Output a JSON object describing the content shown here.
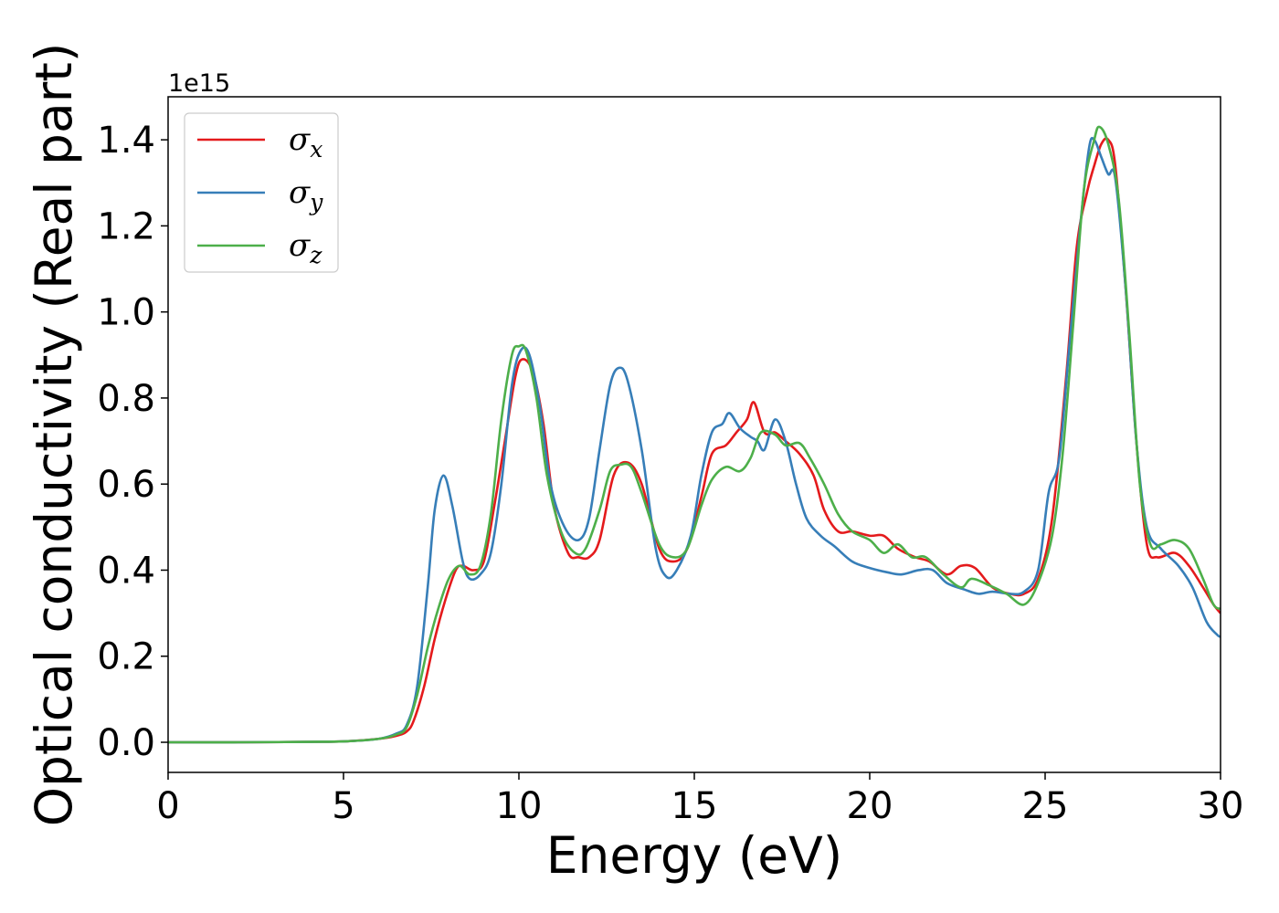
{
  "chart_data": {
    "type": "line",
    "title": "",
    "xlabel": "Energy (eV)",
    "ylabel": "Optical conductivity (Real part)",
    "y_offset_label": "1e15",
    "xlim": [
      0,
      30
    ],
    "ylim": [
      -0.07,
      1.5
    ],
    "x_ticks": [
      0,
      5,
      10,
      15,
      20,
      25,
      30
    ],
    "x_tick_labels": [
      "0",
      "5",
      "10",
      "15",
      "20",
      "25",
      "30"
    ],
    "y_ticks": [
      0.0,
      0.2,
      0.4,
      0.6,
      0.8,
      1.0,
      1.2,
      1.4
    ],
    "y_tick_labels": [
      "0.0",
      "0.2",
      "0.4",
      "0.6",
      "0.8",
      "1.0",
      "1.2",
      "1.4"
    ],
    "grid": false,
    "legend_position": "top-left",
    "series": [
      {
        "name": "σ",
        "subscript": "x",
        "color": "#e41a1c",
        "points": [
          [
            0,
            0
          ],
          [
            2,
            0
          ],
          [
            4,
            0.001
          ],
          [
            5,
            0.002
          ],
          [
            6,
            0.008
          ],
          [
            6.5,
            0.015
          ],
          [
            6.8,
            0.025
          ],
          [
            7,
            0.05
          ],
          [
            7.3,
            0.13
          ],
          [
            7.6,
            0.24
          ],
          [
            7.9,
            0.33
          ],
          [
            8.2,
            0.4
          ],
          [
            8.4,
            0.41
          ],
          [
            8.7,
            0.4
          ],
          [
            9.0,
            0.42
          ],
          [
            9.3,
            0.55
          ],
          [
            9.6,
            0.7
          ],
          [
            9.9,
            0.85
          ],
          [
            10.1,
            0.89
          ],
          [
            10.4,
            0.86
          ],
          [
            10.7,
            0.74
          ],
          [
            11.0,
            0.55
          ],
          [
            11.4,
            0.44
          ],
          [
            11.7,
            0.43
          ],
          [
            12.0,
            0.43
          ],
          [
            12.3,
            0.47
          ],
          [
            12.7,
            0.62
          ],
          [
            13.1,
            0.65
          ],
          [
            13.5,
            0.6
          ],
          [
            14.0,
            0.45
          ],
          [
            14.4,
            0.42
          ],
          [
            14.8,
            0.45
          ],
          [
            15.2,
            0.57
          ],
          [
            15.5,
            0.67
          ],
          [
            15.9,
            0.69
          ],
          [
            16.2,
            0.72
          ],
          [
            16.5,
            0.75
          ],
          [
            16.7,
            0.79
          ],
          [
            17.0,
            0.72
          ],
          [
            17.3,
            0.72
          ],
          [
            17.6,
            0.7
          ],
          [
            18.0,
            0.67
          ],
          [
            18.4,
            0.62
          ],
          [
            18.7,
            0.54
          ],
          [
            19.1,
            0.49
          ],
          [
            19.5,
            0.49
          ],
          [
            20.0,
            0.48
          ],
          [
            20.4,
            0.48
          ],
          [
            20.8,
            0.45
          ],
          [
            21.3,
            0.43
          ],
          [
            21.7,
            0.42
          ],
          [
            22.2,
            0.39
          ],
          [
            22.6,
            0.41
          ],
          [
            23.0,
            0.405
          ],
          [
            23.5,
            0.36
          ],
          [
            24.0,
            0.345
          ],
          [
            24.4,
            0.345
          ],
          [
            24.8,
            0.38
          ],
          [
            25.2,
            0.52
          ],
          [
            25.6,
            0.85
          ],
          [
            25.9,
            1.15
          ],
          [
            26.2,
            1.28
          ],
          [
            26.4,
            1.34
          ],
          [
            26.6,
            1.39
          ],
          [
            26.8,
            1.4
          ],
          [
            27.0,
            1.34
          ],
          [
            27.3,
            1.05
          ],
          [
            27.6,
            0.7
          ],
          [
            27.9,
            0.46
          ],
          [
            28.2,
            0.43
          ],
          [
            28.7,
            0.44
          ],
          [
            29.1,
            0.41
          ],
          [
            29.5,
            0.36
          ],
          [
            29.8,
            0.32
          ],
          [
            30,
            0.3
          ]
        ]
      },
      {
        "name": "σ",
        "subscript": "y",
        "color": "#377eb8",
        "points": [
          [
            0,
            0
          ],
          [
            2,
            0
          ],
          [
            4,
            0.001
          ],
          [
            5,
            0.002
          ],
          [
            6,
            0.008
          ],
          [
            6.5,
            0.02
          ],
          [
            6.8,
            0.04
          ],
          [
            7.1,
            0.13
          ],
          [
            7.4,
            0.36
          ],
          [
            7.6,
            0.54
          ],
          [
            7.85,
            0.62
          ],
          [
            8.1,
            0.55
          ],
          [
            8.4,
            0.42
          ],
          [
            8.6,
            0.38
          ],
          [
            8.9,
            0.39
          ],
          [
            9.2,
            0.44
          ],
          [
            9.5,
            0.6
          ],
          [
            9.8,
            0.83
          ],
          [
            10.05,
            0.91
          ],
          [
            10.3,
            0.9
          ],
          [
            10.6,
            0.78
          ],
          [
            10.9,
            0.6
          ],
          [
            11.3,
            0.5
          ],
          [
            11.7,
            0.47
          ],
          [
            12.0,
            0.52
          ],
          [
            12.3,
            0.68
          ],
          [
            12.6,
            0.83
          ],
          [
            12.85,
            0.87
          ],
          [
            13.1,
            0.84
          ],
          [
            13.5,
            0.68
          ],
          [
            13.9,
            0.45
          ],
          [
            14.2,
            0.385
          ],
          [
            14.5,
            0.4
          ],
          [
            14.9,
            0.48
          ],
          [
            15.2,
            0.62
          ],
          [
            15.5,
            0.72
          ],
          [
            15.8,
            0.74
          ],
          [
            16.0,
            0.765
          ],
          [
            16.3,
            0.73
          ],
          [
            16.6,
            0.71
          ],
          [
            16.8,
            0.7
          ],
          [
            17.0,
            0.68
          ],
          [
            17.3,
            0.75
          ],
          [
            17.6,
            0.7
          ],
          [
            17.9,
            0.6
          ],
          [
            18.2,
            0.52
          ],
          [
            18.6,
            0.48
          ],
          [
            19.0,
            0.455
          ],
          [
            19.5,
            0.42
          ],
          [
            20.0,
            0.405
          ],
          [
            20.5,
            0.395
          ],
          [
            20.9,
            0.39
          ],
          [
            21.4,
            0.4
          ],
          [
            21.8,
            0.4
          ],
          [
            22.2,
            0.37
          ],
          [
            22.7,
            0.355
          ],
          [
            23.1,
            0.345
          ],
          [
            23.5,
            0.35
          ],
          [
            24.0,
            0.345
          ],
          [
            24.4,
            0.35
          ],
          [
            24.8,
            0.4
          ],
          [
            25.1,
            0.58
          ],
          [
            25.4,
            0.66
          ],
          [
            25.7,
            0.93
          ],
          [
            26.0,
            1.2
          ],
          [
            26.25,
            1.38
          ],
          [
            26.4,
            1.4
          ],
          [
            26.6,
            1.36
          ],
          [
            26.8,
            1.32
          ],
          [
            27.0,
            1.31
          ],
          [
            27.3,
            1.05
          ],
          [
            27.6,
            0.7
          ],
          [
            27.9,
            0.5
          ],
          [
            28.3,
            0.45
          ],
          [
            28.8,
            0.41
          ],
          [
            29.2,
            0.36
          ],
          [
            29.6,
            0.28
          ],
          [
            29.9,
            0.25
          ],
          [
            30,
            0.245
          ]
        ]
      },
      {
        "name": "σ",
        "subscript": "z",
        "color": "#4daf4a",
        "points": [
          [
            0,
            0
          ],
          [
            2,
            0
          ],
          [
            4,
            0.001
          ],
          [
            5,
            0.002
          ],
          [
            6,
            0.008
          ],
          [
            6.5,
            0.018
          ],
          [
            6.8,
            0.035
          ],
          [
            7.1,
            0.11
          ],
          [
            7.4,
            0.22
          ],
          [
            7.7,
            0.31
          ],
          [
            8.0,
            0.38
          ],
          [
            8.3,
            0.41
          ],
          [
            8.6,
            0.39
          ],
          [
            8.9,
            0.41
          ],
          [
            9.2,
            0.53
          ],
          [
            9.5,
            0.75
          ],
          [
            9.8,
            0.9
          ],
          [
            10.0,
            0.92
          ],
          [
            10.2,
            0.91
          ],
          [
            10.5,
            0.8
          ],
          [
            10.8,
            0.62
          ],
          [
            11.2,
            0.49
          ],
          [
            11.6,
            0.44
          ],
          [
            11.9,
            0.45
          ],
          [
            12.3,
            0.54
          ],
          [
            12.6,
            0.63
          ],
          [
            12.9,
            0.645
          ],
          [
            13.2,
            0.64
          ],
          [
            13.5,
            0.58
          ],
          [
            14.0,
            0.46
          ],
          [
            14.4,
            0.43
          ],
          [
            14.8,
            0.45
          ],
          [
            15.2,
            0.55
          ],
          [
            15.5,
            0.61
          ],
          [
            15.9,
            0.64
          ],
          [
            16.3,
            0.63
          ],
          [
            16.6,
            0.66
          ],
          [
            16.9,
            0.72
          ],
          [
            17.3,
            0.715
          ],
          [
            17.6,
            0.69
          ],
          [
            18.0,
            0.695
          ],
          [
            18.3,
            0.66
          ],
          [
            18.7,
            0.6
          ],
          [
            19.1,
            0.53
          ],
          [
            19.5,
            0.49
          ],
          [
            20.0,
            0.47
          ],
          [
            20.4,
            0.44
          ],
          [
            20.8,
            0.46
          ],
          [
            21.2,
            0.43
          ],
          [
            21.6,
            0.43
          ],
          [
            22.1,
            0.39
          ],
          [
            22.6,
            0.36
          ],
          [
            22.9,
            0.38
          ],
          [
            23.4,
            0.365
          ],
          [
            23.9,
            0.345
          ],
          [
            24.4,
            0.32
          ],
          [
            24.8,
            0.37
          ],
          [
            25.2,
            0.48
          ],
          [
            25.5,
            0.67
          ],
          [
            25.8,
            0.97
          ],
          [
            26.1,
            1.28
          ],
          [
            26.4,
            1.4
          ],
          [
            26.55,
            1.43
          ],
          [
            26.8,
            1.39
          ],
          [
            27.1,
            1.26
          ],
          [
            27.4,
            0.95
          ],
          [
            27.7,
            0.6
          ],
          [
            28.0,
            0.46
          ],
          [
            28.3,
            0.46
          ],
          [
            28.7,
            0.47
          ],
          [
            29.1,
            0.45
          ],
          [
            29.5,
            0.38
          ],
          [
            29.8,
            0.32
          ],
          [
            30,
            0.31
          ]
        ]
      }
    ]
  }
}
